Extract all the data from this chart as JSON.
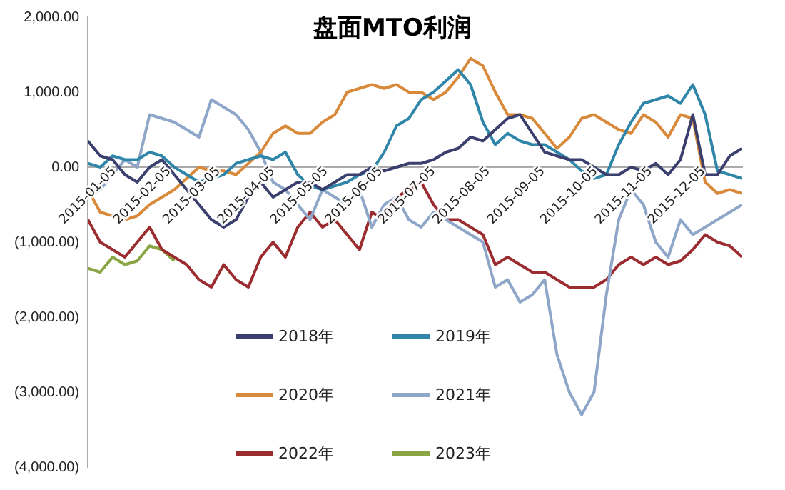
{
  "chart_data": {
    "type": "line",
    "title": "盘面MTO利润",
    "x": [
      "2015-01-05",
      "2015-01-12",
      "2015-01-19",
      "2015-01-26",
      "2015-02-02",
      "2015-02-09",
      "2015-02-16",
      "2015-02-23",
      "2015-03-02",
      "2015-03-09",
      "2015-03-16",
      "2015-03-23",
      "2015-03-30",
      "2015-04-06",
      "2015-04-13",
      "2015-04-20",
      "2015-04-27",
      "2015-05-04",
      "2015-05-11",
      "2015-05-18",
      "2015-05-25",
      "2015-06-01",
      "2015-06-08",
      "2015-06-15",
      "2015-06-22",
      "2015-06-29",
      "2015-07-06",
      "2015-07-13",
      "2015-07-20",
      "2015-07-27",
      "2015-08-03",
      "2015-08-10",
      "2015-08-17",
      "2015-08-24",
      "2015-08-31",
      "2015-09-07",
      "2015-09-14",
      "2015-09-21",
      "2015-09-28",
      "2015-10-05",
      "2015-10-12",
      "2015-10-19",
      "2015-10-26",
      "2015-11-02",
      "2015-11-09",
      "2015-11-16",
      "2015-11-23",
      "2015-11-30",
      "2015-12-07",
      "2015-12-14",
      "2015-12-21",
      "2015-12-28",
      "2016-01-04",
      "2016-01-11"
    ],
    "series": [
      {
        "name": "2018年",
        "color": "#3b3f6e",
        "values": [
          350,
          150,
          100,
          -100,
          -200,
          0,
          100,
          -100,
          -300,
          -500,
          -700,
          -800,
          -700,
          -400,
          -200,
          -400,
          -300,
          -200,
          -200,
          -300,
          -200,
          -100,
          -100,
          0,
          -50,
          0,
          50,
          50,
          100,
          200,
          250,
          400,
          350,
          500,
          650,
          700,
          450,
          200,
          150,
          100,
          100,
          0,
          -100,
          -100,
          0,
          -50,
          50,
          -100,
          100,
          700,
          -100,
          -100,
          150,
          250
        ]
      },
      {
        "name": "2019年",
        "color": "#2f86a8",
        "values": [
          50,
          0,
          150,
          100,
          100,
          200,
          150,
          0,
          -100,
          -200,
          -150,
          -100,
          50,
          100,
          150,
          100,
          200,
          -100,
          -250,
          -300,
          -250,
          -200,
          -100,
          -50,
          200,
          550,
          650,
          900,
          1000,
          1150,
          1300,
          1100,
          600,
          300,
          450,
          350,
          300,
          300,
          200,
          100,
          -50,
          -150,
          -100,
          300,
          600,
          850,
          900,
          950,
          850,
          1100,
          700,
          -50,
          -100,
          -150
        ]
      },
      {
        "name": "2020年",
        "color": "#d9893a",
        "values": [
          -300,
          -600,
          -650,
          -700,
          -650,
          -500,
          -400,
          -300,
          -150,
          0,
          -50,
          -50,
          -100,
          50,
          200,
          450,
          550,
          450,
          450,
          600,
          700,
          1000,
          1050,
          1100,
          1050,
          1100,
          1000,
          1000,
          900,
          1000,
          1200,
          1450,
          1350,
          1000,
          700,
          700,
          650,
          450,
          250,
          400,
          650,
          700,
          600,
          500,
          450,
          700,
          600,
          400,
          700,
          650,
          -200,
          -350,
          -300,
          -350
        ]
      },
      {
        "name": "2021年",
        "color": "#8ea6c8",
        "values": [
          -400,
          -300,
          -100,
          100,
          0,
          700,
          650,
          600,
          500,
          400,
          900,
          800,
          700,
          500,
          200,
          -200,
          -300,
          -500,
          -700,
          -300,
          -400,
          -500,
          -300,
          -800,
          -500,
          -400,
          -700,
          -800,
          -600,
          -700,
          -800,
          -900,
          -1000,
          -1600,
          -1500,
          -1800,
          -1700,
          -1500,
          -2500,
          -3000,
          -3300,
          -3000,
          -1700,
          -700,
          -300,
          -500,
          -1000,
          -1200,
          -700,
          -900,
          -800,
          -700,
          -600,
          -500
        ]
      },
      {
        "name": "2022年",
        "color": "#9b2d30",
        "values": [
          -700,
          -1000,
          -1100,
          -1200,
          -1000,
          -800,
          -1100,
          -1200,
          -1300,
          -1500,
          -1600,
          -1300,
          -1500,
          -1600,
          -1200,
          -1000,
          -1200,
          -800,
          -600,
          -800,
          -700,
          -900,
          -1100,
          -600,
          -700,
          -400,
          -300,
          -200,
          -500,
          -700,
          -700,
          -800,
          -900,
          -1300,
          -1200,
          -1300,
          -1400,
          -1400,
          -1500,
          -1600,
          -1600,
          -1600,
          -1500,
          -1300,
          -1200,
          -1300,
          -1200,
          -1300,
          -1250,
          -1100,
          -900,
          -1000,
          -1050,
          -1200
        ]
      },
      {
        "name": "2023年",
        "color": "#8aa544",
        "values": [
          -1350,
          -1400,
          -1200,
          -1300,
          -1250,
          -1050,
          -1100,
          -1250,
          null,
          null,
          null,
          null,
          null,
          null,
          null,
          null,
          null,
          null,
          null,
          null,
          null,
          null,
          null,
          null,
          null,
          null,
          null,
          null,
          null,
          null,
          null,
          null,
          null,
          null,
          null,
          null,
          null,
          null,
          null,
          null,
          null,
          null,
          null,
          null,
          null,
          null,
          null,
          null,
          null,
          null,
          null,
          null,
          null,
          null
        ]
      }
    ],
    "xlim": [
      "2015-01-05",
      "2016-01-11"
    ],
    "xticks": [
      "2015-01-05",
      "2015-02-05",
      "2015-03-05",
      "2015-04-05",
      "2015-05-05",
      "2015-06-05",
      "2015-07-05",
      "2015-08-05",
      "2015-09-05",
      "2015-10-05",
      "2015-11-05",
      "2015-12-05"
    ],
    "ylim": [
      -4000,
      2000
    ],
    "yticks": [
      {
        "value": -4000,
        "label": "(4,000.00)"
      },
      {
        "value": -3000,
        "label": "(3,000.00)"
      },
      {
        "value": -2000,
        "label": "(2,000.00)"
      },
      {
        "value": -1000,
        "label": "(1,000.00)"
      },
      {
        "value": 0,
        "label": "0.00"
      },
      {
        "value": 1000,
        "label": "1,000.00"
      },
      {
        "value": 2000,
        "label": "2,000.00"
      }
    ],
    "legend": "bottom left",
    "marker": "none",
    "line_style": "solid",
    "grid": false
  }
}
